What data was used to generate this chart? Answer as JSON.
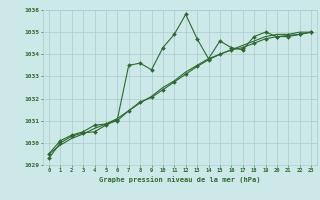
{
  "xlabel": "Graphe pression niveau de la mer (hPa)",
  "x": [
    0,
    1,
    2,
    3,
    4,
    5,
    6,
    7,
    8,
    9,
    10,
    11,
    12,
    13,
    14,
    15,
    16,
    17,
    18,
    19,
    20,
    21,
    22,
    23
  ],
  "series1": [
    1029.3,
    1030.0,
    1030.3,
    1030.45,
    1030.5,
    1030.8,
    1031.05,
    1033.5,
    1033.6,
    1033.3,
    1034.3,
    1034.9,
    1035.8,
    1034.7,
    1033.8,
    1034.6,
    1034.3,
    1034.2,
    1034.8,
    1035.0,
    1034.8,
    1034.8,
    1034.9,
    1035.0
  ],
  "series2": [
    1029.5,
    1030.1,
    1030.35,
    1030.5,
    1030.8,
    1030.85,
    1031.0,
    1031.45,
    1031.85,
    1032.05,
    1032.4,
    1032.75,
    1033.1,
    1033.45,
    1033.75,
    1034.0,
    1034.2,
    1034.3,
    1034.5,
    1034.7,
    1034.8,
    1034.85,
    1034.9,
    1035.0
  ],
  "series3": [
    1029.5,
    1029.9,
    1030.2,
    1030.4,
    1030.65,
    1030.85,
    1031.1,
    1031.45,
    1031.8,
    1032.1,
    1032.5,
    1032.8,
    1033.2,
    1033.5,
    1033.8,
    1034.0,
    1034.2,
    1034.4,
    1034.6,
    1034.8,
    1034.9,
    1034.9,
    1035.0,
    1035.0
  ],
  "line_color": "#2d6a2d",
  "bg_color": "#cce8e8",
  "grid_color": "#aacccc",
  "label_color": "#2d6a2d",
  "ylim_min": 1029,
  "ylim_max": 1036,
  "yticks": [
    1029,
    1030,
    1031,
    1032,
    1033,
    1034,
    1035,
    1036
  ]
}
